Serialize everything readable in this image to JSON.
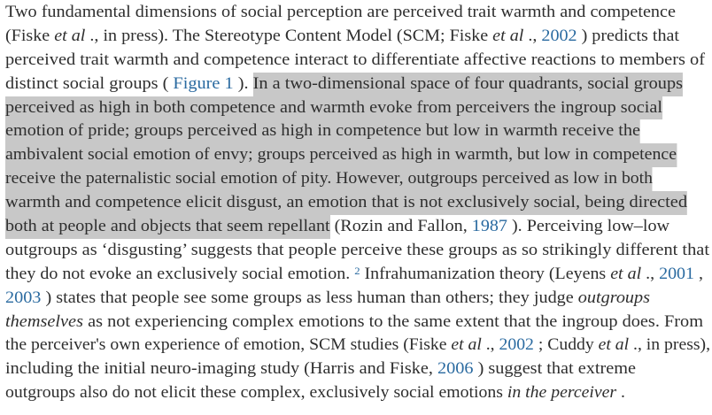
{
  "colors": {
    "text": "#2e2e2e",
    "link": "#2a6aa0",
    "selection": "#c8c8c8"
  },
  "lines": [
    [
      {
        "t": "Two fundamental dimensions of social perception are perceived trait warmth and competence"
      }
    ],
    [
      {
        "t": "(Fiske "
      },
      {
        "t": "et al",
        "s": "i"
      },
      {
        "t": " ., in press). The Stereotype Content Model (SCM; Fiske "
      },
      {
        "t": "et al",
        "s": "i"
      },
      {
        "t": " ., "
      },
      {
        "t": "2002",
        "s": "link"
      },
      {
        "t": " ) predicts that"
      }
    ],
    [
      {
        "t": "perceived trait warmth and competence interact to differentiate affective reactions to members of"
      }
    ],
    [
      {
        "t": "distinct social groups ( "
      },
      {
        "t": "Figure 1",
        "s": "link"
      },
      {
        "t": " ). "
      },
      {
        "t": "In a two-dimensional space of four quadrants, social groups",
        "s": "hl"
      }
    ],
    [
      {
        "t": "perceived as high in both competence and warmth evoke from perceivers the ingroup social",
        "s": "hl"
      }
    ],
    [
      {
        "t": "emotion of pride; groups perceived as high in competence but low in warmth receive the",
        "s": "hl"
      }
    ],
    [
      {
        "t": "ambivalent social emotion of envy; groups perceived as high in warmth, but low in competence",
        "s": "hl"
      }
    ],
    [
      {
        "t": "receive the paternalistic social emotion of pity. However, outgroups perceived as low in both",
        "s": "hl"
      }
    ],
    [
      {
        "t": "warmth and competence elicit disgust, an emotion that is not exclusively social, being directed",
        "s": "hl"
      }
    ],
    [
      {
        "t": "both at people and objects that seem repellant",
        "s": "hl"
      },
      {
        "t": " (Rozin and Fallon, "
      },
      {
        "t": "1987",
        "s": "link"
      },
      {
        "t": " ). Perceiving low–low"
      }
    ],
    [
      {
        "t": "outgroups as ‘disgusting’ suggests that people perceive these groups as so strikingly different that"
      }
    ],
    [
      {
        "t": "they do not evoke an exclusively social emotion. "
      },
      {
        "t": "2",
        "s": "sup"
      },
      {
        "t": " Infrahumanization theory (Leyens "
      },
      {
        "t": "et al",
        "s": "i"
      },
      {
        "t": " ., "
      },
      {
        "t": "2001",
        "s": "link"
      },
      {
        "t": " ,"
      }
    ],
    [
      {
        "t": "2003",
        "s": "link"
      },
      {
        "t": " ) states that people see some groups as less human than others; they judge "
      },
      {
        "t": "outgroups",
        "s": "i"
      }
    ],
    [
      {
        "t": "themselves",
        "s": "i"
      },
      {
        "t": " as not experiencing complex emotions to the same extent that the ingroup does. From"
      }
    ],
    [
      {
        "t": "the perceiver's own experience of emotion, SCM studies (Fiske "
      },
      {
        "t": "et al",
        "s": "i"
      },
      {
        "t": " ., "
      },
      {
        "t": "2002",
        "s": "link"
      },
      {
        "t": " ; Cuddy "
      },
      {
        "t": "et al",
        "s": "i"
      },
      {
        "t": " ., in press),"
      }
    ],
    [
      {
        "t": "including the initial neuro-imaging study (Harris and Fiske, "
      },
      {
        "t": "2006",
        "s": "link"
      },
      {
        "t": " ) suggest that extreme"
      }
    ],
    [
      {
        "t": "outgroups also do not elicit these complex, exclusively social emotions "
      },
      {
        "t": "in the perceiver",
        "s": "i"
      },
      {
        "t": " ."
      }
    ]
  ]
}
